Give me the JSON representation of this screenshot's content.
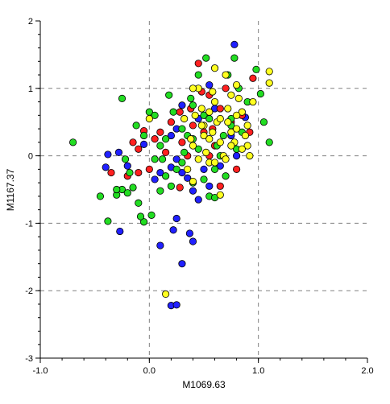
{
  "chart_data": {
    "type": "scatter",
    "title": "",
    "xlabel": "M1069.63",
    "ylabel": "M1167.37",
    "xlim": [
      -1.0,
      2.0
    ],
    "ylim": [
      -3,
      2
    ],
    "x_ticks": [
      -1.0,
      0.0,
      1.0,
      2.0
    ],
    "x_tick_labels": [
      "-1.0",
      "0.0",
      "1.0",
      "2.0"
    ],
    "y_ticks": [
      -3,
      -2,
      -1,
      0,
      1,
      2
    ],
    "y_tick_labels": [
      "-3",
      "-2",
      "-1",
      "0",
      "1",
      "2"
    ],
    "grid": "dashed lines at x=0, x=1, y=-2, y=-1, y=0, y=1",
    "legend": "none",
    "series": [
      {
        "color": "#2020ff",
        "points": [
          [
            -0.38,
            0.02
          ],
          [
            -0.28,
            0.05
          ],
          [
            -0.4,
            -0.17
          ],
          [
            -0.2,
            -0.15
          ],
          [
            -0.05,
            0.17
          ],
          [
            0.05,
            -0.35
          ],
          [
            0.1,
            -0.25
          ],
          [
            0.2,
            -0.17
          ],
          [
            0.25,
            -0.05
          ],
          [
            0.3,
            -0.25
          ],
          [
            0.35,
            -0.33
          ],
          [
            0.4,
            -0.52
          ],
          [
            0.45,
            -0.65
          ],
          [
            0.5,
            -0.2
          ],
          [
            0.55,
            -0.45
          ],
          [
            0.25,
            -0.93
          ],
          [
            0.22,
            -1.1
          ],
          [
            0.37,
            -1.15
          ],
          [
            0.4,
            -1.27
          ],
          [
            0.1,
            -1.33
          ],
          [
            0.3,
            -1.6
          ],
          [
            0.2,
            -2.22
          ],
          [
            0.25,
            -2.21
          ],
          [
            -0.27,
            -1.12
          ],
          [
            0.78,
            1.65
          ],
          [
            0.55,
            1.05
          ],
          [
            0.6,
            0.7
          ],
          [
            0.45,
            0.55
          ],
          [
            0.25,
            0.4
          ],
          [
            0.3,
            0.75
          ],
          [
            0.75,
            0.3
          ],
          [
            0.8,
            0.0
          ],
          [
            0.88,
            0.57
          ],
          [
            0.65,
            -0.15
          ],
          [
            0.2,
            0.3
          ]
        ]
      },
      {
        "color": "#ff2020",
        "points": [
          [
            -0.15,
            0.2
          ],
          [
            -0.1,
            0.1
          ],
          [
            -0.05,
            0.37
          ],
          [
            0.0,
            -0.2
          ],
          [
            0.05,
            0.25
          ],
          [
            0.15,
            0.05
          ],
          [
            0.2,
            0.5
          ],
          [
            0.28,
            0.65
          ],
          [
            0.3,
            0.2
          ],
          [
            0.35,
            0.0
          ],
          [
            0.4,
            0.45
          ],
          [
            0.45,
            1.37
          ],
          [
            0.48,
            0.95
          ],
          [
            0.55,
            0.9
          ],
          [
            0.58,
            0.4
          ],
          [
            0.6,
            0.15
          ],
          [
            0.65,
            0.7
          ],
          [
            0.7,
            1.0
          ],
          [
            0.75,
            0.5
          ],
          [
            0.8,
            -0.2
          ],
          [
            0.85,
            0.6
          ],
          [
            0.95,
            1.15
          ],
          [
            0.92,
            0.35
          ],
          [
            -0.35,
            -0.25
          ],
          [
            0.65,
            -0.45
          ],
          [
            0.28,
            -0.47
          ],
          [
            0.5,
            0.35
          ],
          [
            0.55,
            0.0
          ],
          [
            0.38,
            0.7
          ],
          [
            -0.1,
            -0.25
          ],
          [
            -0.2,
            -0.3
          ],
          [
            0.1,
            0.35
          ]
        ]
      },
      {
        "color": "#22dd22",
        "points": [
          [
            -0.7,
            0.2
          ],
          [
            -0.25,
            0.85
          ],
          [
            -0.12,
            0.45
          ],
          [
            -0.05,
            0.3
          ],
          [
            0.0,
            0.65
          ],
          [
            0.05,
            0.6
          ],
          [
            0.1,
            0.15
          ],
          [
            0.12,
            -0.05
          ],
          [
            0.18,
            0.9
          ],
          [
            0.22,
            0.65
          ],
          [
            0.3,
            0.4
          ],
          [
            0.32,
            0.05
          ],
          [
            0.38,
            0.85
          ],
          [
            0.4,
            0.25
          ],
          [
            0.45,
            1.2
          ],
          [
            0.5,
            0.6
          ],
          [
            0.52,
            1.45
          ],
          [
            0.55,
            0.55
          ],
          [
            0.6,
            -0.2
          ],
          [
            0.62,
            0.15
          ],
          [
            0.68,
            0.3
          ],
          [
            0.75,
            0.45
          ],
          [
            0.8,
            0.1
          ],
          [
            0.85,
            0.35
          ],
          [
            0.9,
            0.8
          ],
          [
            0.98,
            1.28
          ],
          [
            1.02,
            0.92
          ],
          [
            1.05,
            0.5
          ],
          [
            1.1,
            0.2
          ],
          [
            -0.45,
            -0.6
          ],
          [
            -0.38,
            -0.97
          ],
          [
            -0.3,
            -0.58
          ],
          [
            -0.25,
            -0.5
          ],
          [
            -0.2,
            -0.55
          ],
          [
            -0.18,
            -0.25
          ],
          [
            -0.15,
            -0.47
          ],
          [
            -0.1,
            -0.7
          ],
          [
            -0.05,
            -0.98
          ],
          [
            -0.08,
            -0.9
          ],
          [
            0.02,
            -0.88
          ],
          [
            0.05,
            -0.05
          ],
          [
            0.1,
            -0.52
          ],
          [
            0.15,
            -0.3
          ],
          [
            0.2,
            -0.45
          ],
          [
            0.25,
            -0.2
          ],
          [
            0.3,
            -0.1
          ],
          [
            0.35,
            0.3
          ],
          [
            0.4,
            -0.4
          ],
          [
            0.45,
            0.1
          ],
          [
            0.5,
            -0.35
          ],
          [
            0.55,
            -0.6
          ],
          [
            0.6,
            -0.62
          ],
          [
            0.65,
            0.0
          ],
          [
            0.7,
            -0.3
          ],
          [
            0.72,
            1.2
          ],
          [
            0.75,
            0.55
          ],
          [
            0.78,
            1.45
          ],
          [
            0.82,
            1.0
          ],
          [
            -0.22,
            -0.05
          ],
          [
            -0.3,
            -0.5
          ],
          [
            0.15,
            0.25
          ],
          [
            0.4,
            0.75
          ]
        ]
      },
      {
        "color": "#ffff20",
        "points": [
          [
            0.0,
            0.55
          ],
          [
            0.32,
            0.55
          ],
          [
            0.38,
            0.25
          ],
          [
            0.4,
            0.15
          ],
          [
            0.45,
            1.0
          ],
          [
            0.48,
            0.7
          ],
          [
            0.5,
            0.3
          ],
          [
            0.52,
            0.05
          ],
          [
            0.55,
            0.65
          ],
          [
            0.58,
            0.95
          ],
          [
            0.6,
            1.3
          ],
          [
            0.62,
            0.5
          ],
          [
            0.65,
            0.2
          ],
          [
            0.68,
            0.0
          ],
          [
            0.7,
            1.2
          ],
          [
            0.72,
            0.7
          ],
          [
            0.75,
            0.35
          ],
          [
            0.78,
            0.2
          ],
          [
            0.8,
            1.05
          ],
          [
            0.82,
            0.85
          ],
          [
            0.85,
            0.65
          ],
          [
            0.88,
            0.3
          ],
          [
            0.9,
            0.15
          ],
          [
            0.92,
            0.0
          ],
          [
            0.35,
            -0.2
          ],
          [
            0.4,
            -0.38
          ],
          [
            0.45,
            -0.05
          ],
          [
            0.5,
            0.45
          ],
          [
            0.55,
            -0.1
          ],
          [
            0.6,
            -0.1
          ],
          [
            0.65,
            -0.58
          ],
          [
            0.7,
            -0.05
          ],
          [
            0.72,
            0.5
          ],
          [
            0.75,
            0.9
          ],
          [
            0.8,
            0.4
          ],
          [
            0.85,
            0.1
          ],
          [
            0.95,
            0.8
          ],
          [
            1.1,
            1.25
          ],
          [
            1.1,
            1.08
          ],
          [
            0.15,
            -2.05
          ],
          [
            0.4,
            1.0
          ],
          [
            0.42,
            0.6
          ],
          [
            0.48,
            0.45
          ],
          [
            0.58,
            0.35
          ],
          [
            0.65,
            0.55
          ],
          [
            0.75,
            0.15
          ],
          [
            0.8,
            0.6
          ],
          [
            0.9,
            0.45
          ],
          [
            0.55,
            0.25
          ],
          [
            0.6,
            0.8
          ]
        ]
      }
    ]
  }
}
